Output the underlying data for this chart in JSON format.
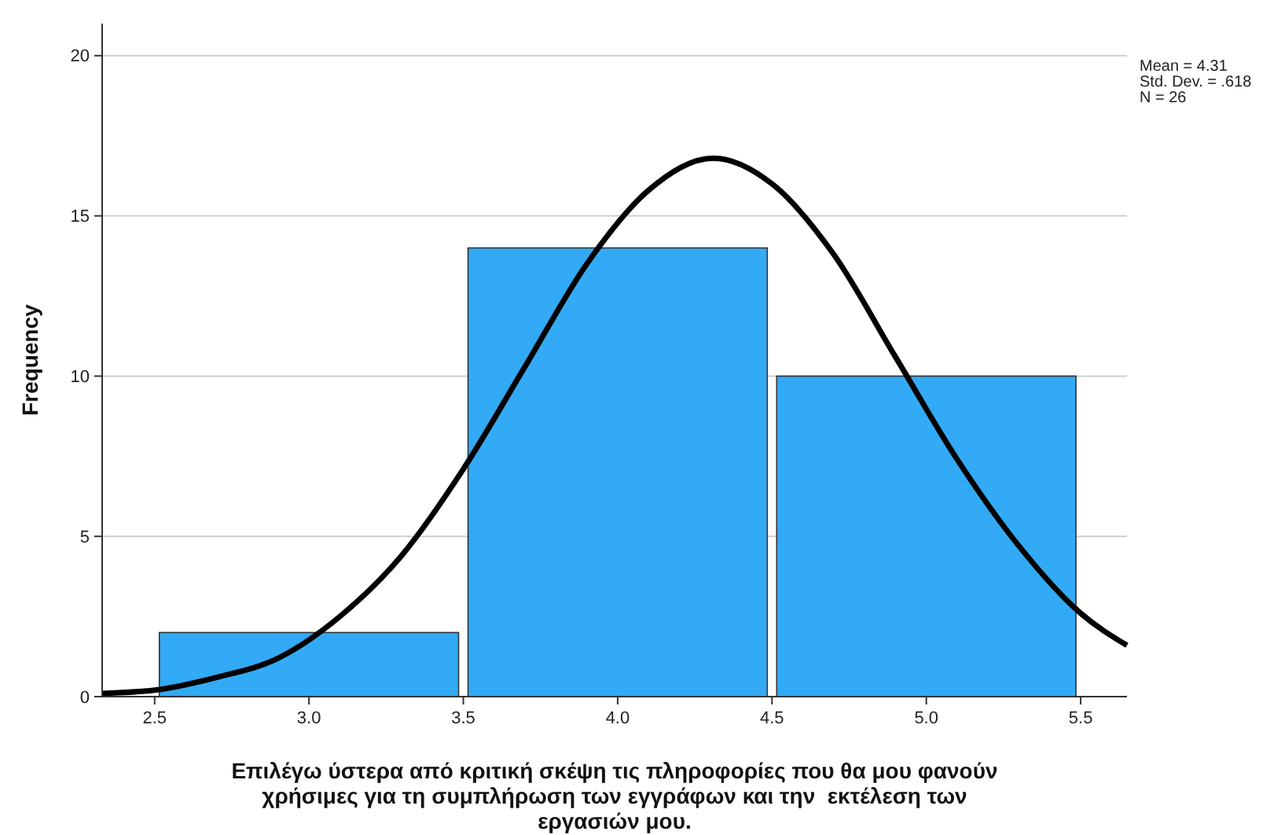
{
  "chart_data": {
    "type": "histogram",
    "xlabel": "Επιλέγω ύστερα από κριτική σκέψη τις πληροφορίες που θα μου φανούν χρήσιμες για τη συμπλήρωση των εγγράφων και την  εκτέλεση των εργασιών μου.",
    "ylabel": "Frequency",
    "bins": [
      2.5,
      3.5,
      4.5,
      5.5
    ],
    "values": [
      2,
      14,
      10
    ],
    "color": "#33aaf5",
    "series": [
      {
        "type": "line",
        "color": "#000000",
        "x": [
          2.33,
          2.5,
          2.7,
          2.9,
          3.1,
          3.3,
          3.5,
          3.7,
          3.9,
          4.1,
          4.31,
          4.5,
          4.7,
          4.9,
          5.1,
          5.3,
          5.5,
          5.65
        ],
        "values": [
          0.1,
          0.2,
          0.6,
          1.2,
          2.5,
          4.4,
          7.1,
          10.3,
          13.5,
          15.8,
          16.8,
          16.0,
          13.8,
          10.6,
          7.4,
          4.7,
          2.6,
          1.6
        ]
      }
    ],
    "xlim": [
      2.33,
      5.65
    ],
    "xticks": [
      2.5,
      {
        "value": 3,
        "label": "3.0"
      },
      3.5,
      {
        "value": 4,
        "label": "4.0"
      },
      4.5,
      {
        "value": 5,
        "label": "5.0"
      },
      5.5
    ],
    "ylim": [
      0,
      21
    ],
    "yticks": [
      0,
      5,
      10,
      15,
      20
    ],
    "grid": "y",
    "annotations": [
      "Mean = 4.31",
      "Std. Dev. = .618",
      "N = 26"
    ]
  }
}
